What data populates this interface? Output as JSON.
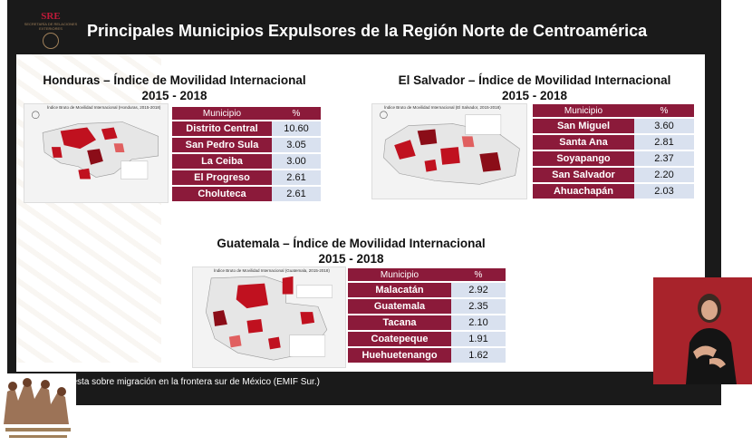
{
  "header": {
    "logo_text": "SRE",
    "logo_subtitle": "SECRETARÍA DE RELACIONES EXTERIORES",
    "title": "Principales Municipios Expulsores de la Región Norte de Centroamérica"
  },
  "honduras": {
    "title_line1": "Honduras – Índice de Movilidad Internacional",
    "title_line2": "2015 - 2018",
    "map_caption": "Índice Bruto de Movilidad Internacional (Honduras, 2015-2018)",
    "col_municipio": "Municipio",
    "col_pct": "%",
    "rows": [
      {
        "name": "Distrito Central",
        "value": "10.60"
      },
      {
        "name": "San Pedro Sula",
        "value": "3.05"
      },
      {
        "name": "La Ceiba",
        "value": "3.00"
      },
      {
        "name": "El Progreso",
        "value": "2.61"
      },
      {
        "name": "Choluteca",
        "value": "2.61"
      }
    ]
  },
  "el_salvador": {
    "title_line1": "El Salvador – Índice de Movilidad Internacional",
    "title_line2": "2015 - 2018",
    "map_caption": "Índice Bruto de Movilidad Internacional (El Salvador, 2015-2018)",
    "col_municipio": "Municipio",
    "col_pct": "%",
    "rows": [
      {
        "name": "San Miguel",
        "value": "3.60"
      },
      {
        "name": "Santa Ana",
        "value": "2.81"
      },
      {
        "name": "Soyapango",
        "value": "2.37"
      },
      {
        "name": "San Salvador",
        "value": "2.20"
      },
      {
        "name": "Ahuachapán",
        "value": "2.03"
      }
    ]
  },
  "guatemala": {
    "title_line1": "Guatemala – Índice de Movilidad Internacional",
    "title_line2": "2015 - 2018",
    "map_caption": "Índice Bruto de Movilidad Internacional (Guatemala, 2015-2018)",
    "col_municipio": "Municipio",
    "col_pct": "%",
    "rows": [
      {
        "name": "Malacatán",
        "value": "2.92"
      },
      {
        "name": "Guatemala",
        "value": "2.35"
      },
      {
        "name": "Tacana",
        "value": "2.10"
      },
      {
        "name": "Coatepeque",
        "value": "1.91"
      },
      {
        "name": "Huehuetenango",
        "value": "1.62"
      }
    ]
  },
  "source": "Fuente: Encuesta sobre migración en la frontera sur de México (EMIF Sur.)",
  "colors": {
    "table_header": "#8b1a3a",
    "table_value": "#d9e1ef",
    "map_highlight": "#c0111f",
    "interpreter_bg": "#a8232b"
  },
  "icons": {
    "interpreter": "sign-language-interpreter",
    "logo": "sre-seal"
  }
}
